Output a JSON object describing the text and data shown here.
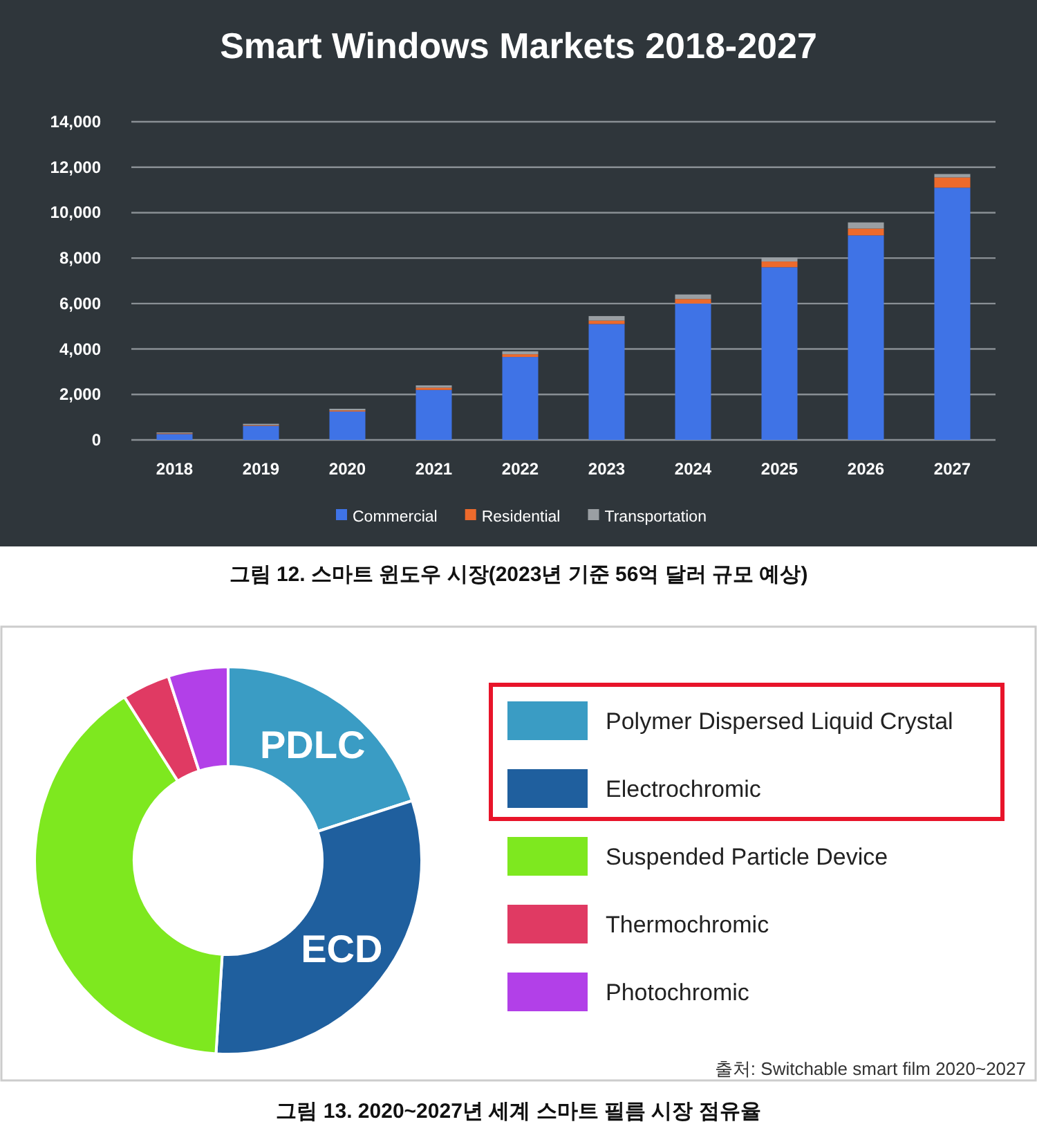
{
  "chart_data": [
    {
      "type": "bar",
      "title": "Smart Windows Markets 2018-2027",
      "stacked": true,
      "categories": [
        "2018",
        "2019",
        "2020",
        "2021",
        "2022",
        "2023",
        "2024",
        "2025",
        "2026",
        "2027"
      ],
      "series": [
        {
          "name": "Commercial",
          "color": "#3f73e6",
          "values": [
            260,
            620,
            1250,
            2200,
            3650,
            5100,
            6000,
            7600,
            9000,
            11100
          ]
        },
        {
          "name": "Residential",
          "color": "#ed6a2c",
          "values": [
            30,
            30,
            50,
            100,
            120,
            150,
            200,
            250,
            300,
            450
          ]
        },
        {
          "name": "Transportation",
          "color": "#9a9fa3",
          "values": [
            40,
            60,
            70,
            100,
            130,
            200,
            200,
            180,
            270,
            150
          ]
        }
      ],
      "ylim": [
        0,
        14000
      ],
      "yticks": [
        {
          "value": 0,
          "label": "0"
        },
        {
          "value": 2000,
          "label": "2,000"
        },
        {
          "value": 4000,
          "label": "4,000"
        },
        {
          "value": 6000,
          "label": "6,000"
        },
        {
          "value": 8000,
          "label": "8,000"
        },
        {
          "value": 10000,
          "label": "10,000"
        },
        {
          "value": 12000,
          "label": "12,000"
        },
        {
          "value": 14000,
          "label": "14,000"
        }
      ],
      "grid": "y",
      "legend": "bottom",
      "annotations": [
        "그림 12. 스마트 윈도우 시장(2023년 기준 56억 달러 규모 예상)"
      ]
    },
    {
      "type": "donut",
      "categories": [
        "Polymer Dispersed Liquid Crystal",
        "Electrochromic",
        "Suspended Particle Device",
        "Thermochromic",
        "Photochromic"
      ],
      "values": [
        20,
        31,
        40,
        4,
        5
      ],
      "colors": [
        "#3a9cc4",
        "#1f5f9e",
        "#7ee81f",
        "#e03a63",
        "#b240e8"
      ],
      "value_labels": [
        "PDLC",
        "ECD",
        null,
        null,
        null
      ],
      "legend": "right",
      "annotations": [
        "출처: Switchable smart film 2020~2027",
        "그림 13. 2020~2027년 세계 스마트 필름 시장 점유율"
      ]
    }
  ]
}
